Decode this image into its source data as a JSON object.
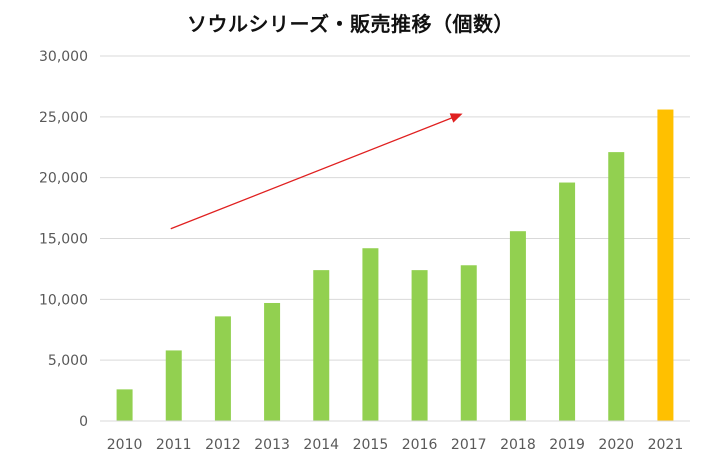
{
  "chart_data": {
    "type": "bar",
    "title": "ソウルシリーズ・販売推移（個数）",
    "xlabel": "",
    "ylabel": "",
    "categories": [
      "2010",
      "2011",
      "2012",
      "2013",
      "2014",
      "2015",
      "2016",
      "2017",
      "2018",
      "2019",
      "2020",
      "2021"
    ],
    "values": [
      2600,
      5800,
      8600,
      9700,
      12400,
      14200,
      12400,
      12800,
      15600,
      19600,
      22100,
      25600
    ],
    "ylim": [
      0,
      30000
    ],
    "yticks": [
      0,
      5000,
      10000,
      15000,
      20000,
      25000,
      30000
    ],
    "ytick_labels": [
      "0",
      "5,000",
      "10,000",
      "15,000",
      "20,000",
      "25,000",
      "30,000"
    ],
    "grid": true,
    "legend": "none",
    "colors": {
      "bar": "#92D050",
      "highlight_bar": "#FFC000",
      "highlight_category": "2021",
      "gridline": "#D9D9D9",
      "tick_text": "#595959",
      "trend_arrow": "#E02020"
    },
    "trend_arrow": {
      "from": {
        "x": "2011",
        "y": 15800
      },
      "to": {
        "x": "2017",
        "y": 25200
      }
    }
  }
}
